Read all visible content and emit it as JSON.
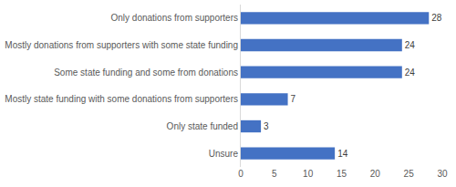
{
  "chart_data": {
    "type": "bar",
    "orientation": "horizontal",
    "categories": [
      "Only donations from supporters",
      "Mostly donations from supporters with some state funding",
      "Some state funding and some from donations",
      "Mostly state funding with some donations from supporters",
      "Only state funded",
      "Unsure"
    ],
    "values": [
      28,
      24,
      24,
      7,
      3,
      14
    ],
    "color": "#4472c4",
    "xlim": [
      0,
      30
    ],
    "xticks": [
      0,
      5,
      10,
      15,
      20,
      25,
      30
    ],
    "grid": false,
    "data_labels": true
  }
}
